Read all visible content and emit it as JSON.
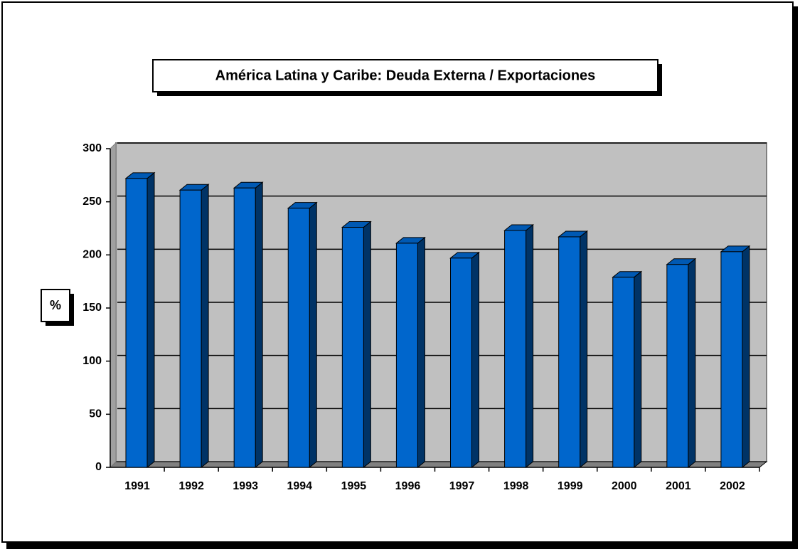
{
  "chart_data": {
    "type": "bar3d",
    "title": "América Latina y Caribe: Deuda Externa / Exportaciones",
    "y_label": "%",
    "categories": [
      "1991",
      "1992",
      "1993",
      "1994",
      "1995",
      "1996",
      "1997",
      "1998",
      "1999",
      "2000",
      "2001",
      "2002"
    ],
    "values": [
      272,
      261,
      263,
      244,
      226,
      211,
      197,
      223,
      217,
      179,
      191,
      203
    ],
    "color": "#0066cc",
    "ylim": [
      0,
      300
    ],
    "yticks": [
      0,
      50,
      100,
      150,
      200,
      250,
      300
    ],
    "grid": true
  }
}
